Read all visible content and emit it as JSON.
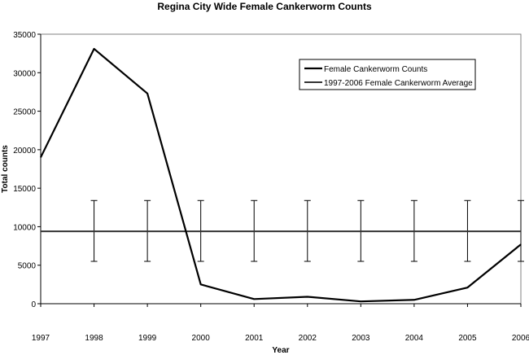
{
  "chart_data": {
    "type": "line",
    "title": "Regina City Wide Female Cankerworm Counts",
    "xlabel": "Year",
    "ylabel": "Total counts",
    "categories": [
      "1997",
      "1998",
      "1999",
      "2000",
      "2001",
      "2002",
      "2003",
      "2004",
      "2005",
      "2006"
    ],
    "ylim": [
      0,
      35000
    ],
    "yticks": [
      0,
      5000,
      10000,
      15000,
      20000,
      25000,
      30000,
      35000
    ],
    "grid": false,
    "legend_position": "top-right",
    "series": [
      {
        "name": "Female Cankerworm Counts",
        "values": [
          19000,
          33100,
          27300,
          2500,
          600,
          900,
          300,
          500,
          2100,
          7700
        ],
        "color": "#000000"
      },
      {
        "name": "1997-2006 Female Cankerworm Average",
        "values": [
          9400,
          9400,
          9400,
          9400,
          9400,
          9400,
          9400,
          9400,
          9400,
          9400
        ],
        "error_bar_low": 5500,
        "error_bar_high": 13400,
        "color": "#333333"
      }
    ]
  }
}
